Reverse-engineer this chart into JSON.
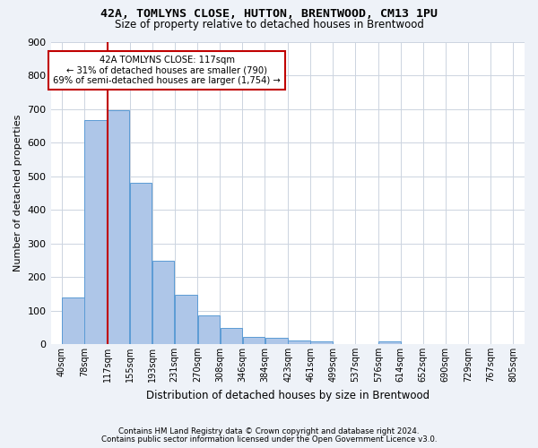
{
  "title1": "42A, TOMLYNS CLOSE, HUTTON, BRENTWOOD, CM13 1PU",
  "title2": "Size of property relative to detached houses in Brentwood",
  "xlabel": "Distribution of detached houses by size in Brentwood",
  "ylabel": "Number of detached properties",
  "footnote1": "Contains HM Land Registry data © Crown copyright and database right 2024.",
  "footnote2": "Contains public sector information licensed under the Open Government Licence v3.0.",
  "bin_labels": [
    "40sqm",
    "78sqm",
    "117sqm",
    "155sqm",
    "193sqm",
    "231sqm",
    "270sqm",
    "308sqm",
    "346sqm",
    "384sqm",
    "423sqm",
    "461sqm",
    "499sqm",
    "537sqm",
    "576sqm",
    "614sqm",
    "652sqm",
    "690sqm",
    "729sqm",
    "767sqm",
    "805sqm"
  ],
  "hist_values": [
    138,
    667,
    695,
    480,
    247,
    148,
    85,
    47,
    22,
    18,
    10,
    8,
    0,
    0,
    8,
    0,
    0,
    0,
    0,
    0,
    0
  ],
  "bar_color": "#aec6e8",
  "bar_edgecolor": "#5b9bd5",
  "vline_x_index": 2,
  "vline_color": "#c00000",
  "annotation_text": "42A TOMLYNS CLOSE: 117sqm\n← 31% of detached houses are smaller (790)\n69% of semi-detached houses are larger (1,754) →",
  "annotation_box_color": "#c00000",
  "ylim": [
    0,
    900
  ],
  "yticks": [
    0,
    100,
    200,
    300,
    400,
    500,
    600,
    700,
    800,
    900
  ],
  "bin_edges": [
    40,
    78,
    117,
    155,
    193,
    231,
    270,
    308,
    346,
    384,
    423,
    461,
    499,
    537,
    576,
    614,
    652,
    690,
    729,
    767,
    805
  ],
  "background_color": "#eef2f8",
  "plot_background": "#ffffff",
  "grid_color": "#ccd4e0"
}
